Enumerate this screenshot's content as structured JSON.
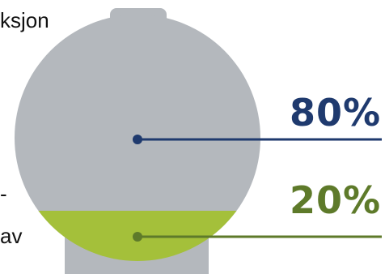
{
  "text_fragments": [
    "ksjon",
    "-",
    "av"
  ],
  "labels": {
    "top_percent": "80%",
    "bottom_percent": "20%"
  },
  "fill": {
    "upper_fraction": 0.8,
    "lower_fraction": 0.2
  },
  "colors": {
    "vessel": "#b4b8bd",
    "liquid": "#a4c03a",
    "top_accent": "#1f3a6e",
    "bottom_accent": "#5e7a2a",
    "text": "#111111"
  }
}
